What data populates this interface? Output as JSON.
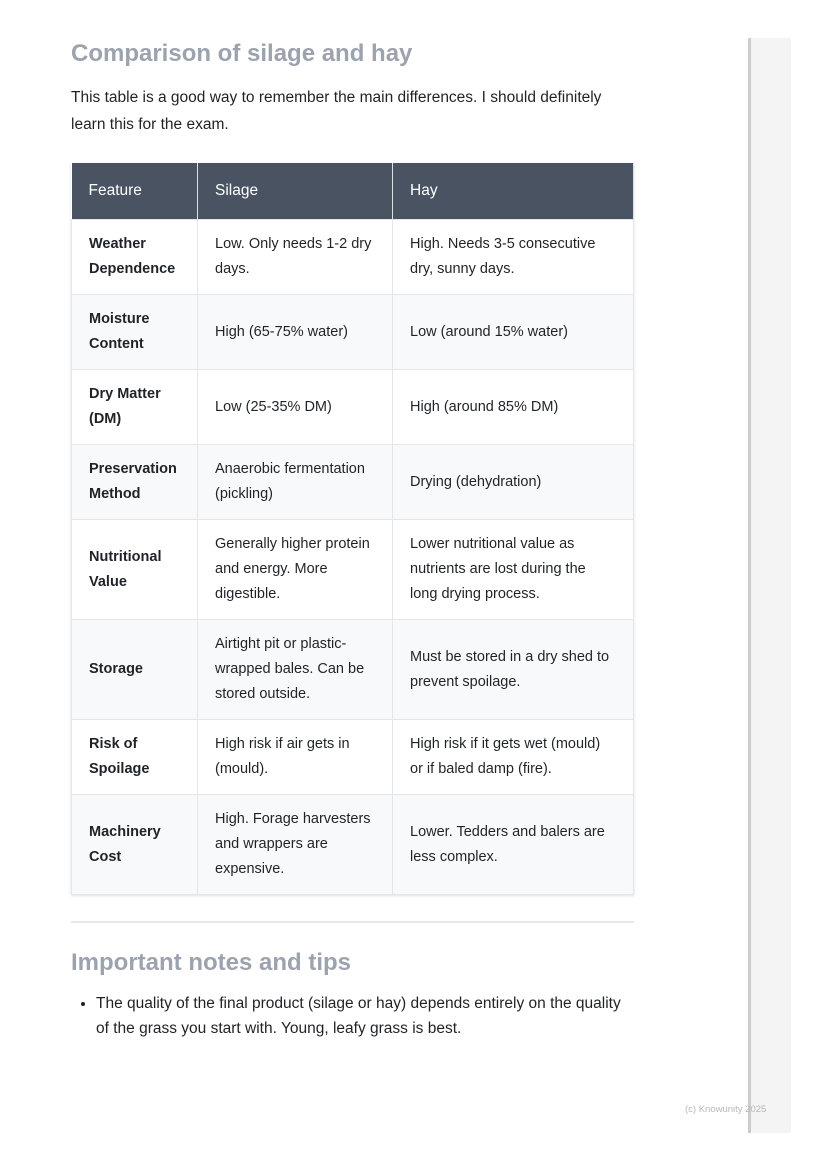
{
  "section1": {
    "title": "Comparison of silage and hay",
    "intro": "This table is a good way to remember the main differences. I should definitely learn this for the exam."
  },
  "table": {
    "headers": [
      "Feature",
      "Silage",
      "Hay"
    ],
    "rows": [
      [
        "Weather Dependence",
        "Low. Only needs 1-2 dry days.",
        "High. Needs 3-5 consecutive dry, sunny days."
      ],
      [
        "Moisture Content",
        "High (65-75% water)",
        "Low (around 15% water)"
      ],
      [
        "Dry Matter (DM)",
        "Low (25-35% DM)",
        "High (around 85% DM)"
      ],
      [
        "Preservation Method",
        "Anaerobic fermentation (pickling)",
        "Drying (dehydration)"
      ],
      [
        "Nutritional Value",
        "Generally higher protein and energy. More digestible.",
        "Lower nutritional value as nutrients are lost during the long drying process."
      ],
      [
        "Storage",
        "Airtight pit or plastic-wrapped bales. Can be stored outside.",
        "Must be stored in a dry shed to prevent spoilage."
      ],
      [
        "Risk of Spoilage",
        "High risk if air gets in (mould).",
        "High risk if it gets wet (mould) or if baled damp (fire)."
      ],
      [
        "Machinery Cost",
        "High. Forage harvesters and wrappers are expensive.",
        "Lower. Tedders and balers are less complex."
      ]
    ]
  },
  "section2": {
    "title": "Important notes and tips",
    "bullets": [
      "The quality of the final product (silage or hay) depends entirely on the quality of the grass you start with. Young, leafy grass is best."
    ]
  },
  "footer": {
    "copyright": "(c) Knowunity 2025"
  }
}
